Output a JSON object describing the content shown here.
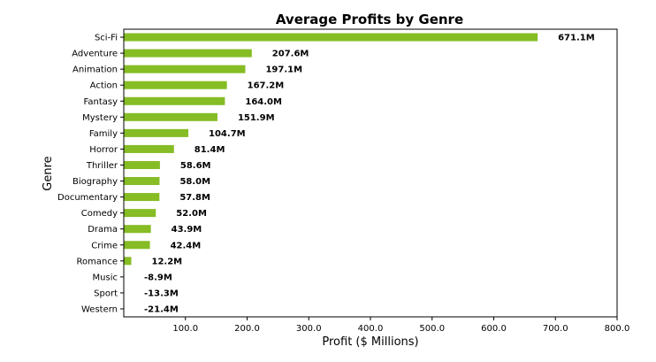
{
  "chart_data": {
    "type": "bar",
    "orientation": "horizontal",
    "title": "Average Profits by Genre",
    "xlabel": "Profit ($ Millions)",
    "ylabel": "Genre",
    "xlim": [
      0,
      800
    ],
    "x_ticks": [
      100,
      200,
      300,
      400,
      500,
      600,
      700,
      800
    ],
    "x_tick_labels": [
      "100.0",
      "200.0",
      "300.0",
      "400.0",
      "500.0",
      "600.0",
      "700.0",
      "800.0"
    ],
    "grid": false,
    "bar_color": "#86bc24",
    "categories": [
      "Sci-Fi",
      "Adventure",
      "Animation",
      "Action",
      "Fantasy",
      "Mystery",
      "Family",
      "Horror",
      "Thriller",
      "Biography",
      "Documentary",
      "Comedy",
      "Drama",
      "Crime",
      "Romance",
      "Music",
      "Sport",
      "Western"
    ],
    "values": [
      671.1,
      207.6,
      197.1,
      167.2,
      164.0,
      151.9,
      104.7,
      81.4,
      58.6,
      58.0,
      57.8,
      52.0,
      43.9,
      42.4,
      12.2,
      -8.9,
      -13.3,
      -21.4
    ],
    "data_labels": [
      "671.1M",
      "207.6M",
      "197.1M",
      "167.2M",
      "164.0M",
      "151.9M",
      "104.7M",
      "81.4M",
      "58.6M",
      "58.0M",
      "57.8M",
      "52.0M",
      "43.9M",
      "42.4M",
      "12.2M",
      "-8.9M",
      "-13.3M",
      "-21.4M"
    ]
  }
}
